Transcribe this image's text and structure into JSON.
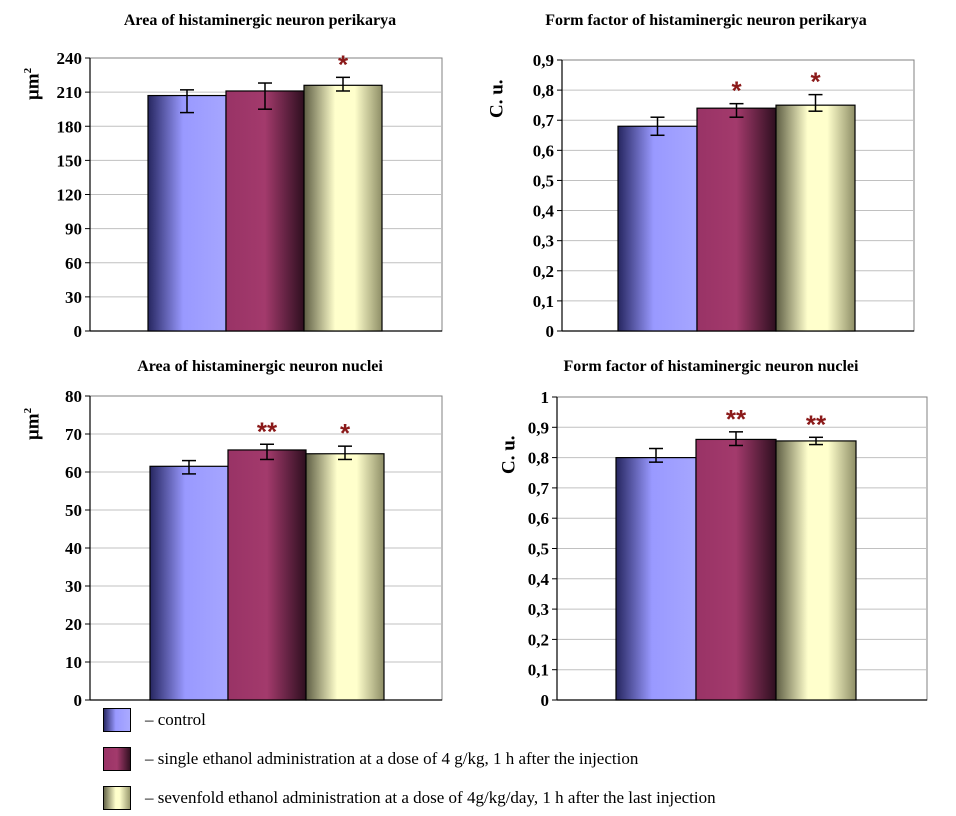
{
  "colors": {
    "control": "#9999ff",
    "single": "#993366",
    "sevenfold": "#ffffcc",
    "star": "#8b1a1a"
  },
  "chart_data": [
    {
      "id": "area-perikarya",
      "type": "bar",
      "title": "Area of histaminergic neuron perikarya",
      "ylabel": "μm",
      "ylabel_sup": "2",
      "ylim": [
        0,
        240
      ],
      "yticks": [
        0,
        30,
        60,
        90,
        120,
        150,
        180,
        210,
        240
      ],
      "ytick_labels": [
        "0",
        "30",
        "60",
        "90",
        "120",
        "150",
        "180",
        "210",
        "240"
      ],
      "grid": true,
      "series": [
        {
          "name": "control",
          "value": 207,
          "err_low": 15,
          "err_high": 5,
          "mark": ""
        },
        {
          "name": "single",
          "value": 211,
          "err_low": 16,
          "err_high": 7,
          "mark": ""
        },
        {
          "name": "sevenfold",
          "value": 216,
          "err_low": 5,
          "err_high": 7,
          "mark": "*"
        }
      ]
    },
    {
      "id": "ff-perikarya",
      "type": "bar",
      "title": "Form factor of histaminergic neuron perikarya",
      "ylabel": "C. u.",
      "ylabel_sup": "",
      "ylim": [
        0,
        0.9
      ],
      "yticks": [
        0,
        0.1,
        0.2,
        0.3,
        0.4,
        0.5,
        0.6,
        0.7,
        0.8,
        0.9
      ],
      "ytick_labels": [
        "0",
        "0,1",
        "0,2",
        "0,3",
        "0,4",
        "0,5",
        "0,6",
        "0,7",
        "0,8",
        "0,9"
      ],
      "grid": true,
      "series": [
        {
          "name": "control",
          "value": 0.68,
          "err_low": 0.03,
          "err_high": 0.03,
          "mark": ""
        },
        {
          "name": "single",
          "value": 0.74,
          "err_low": 0.03,
          "err_high": 0.015,
          "mark": "*"
        },
        {
          "name": "sevenfold",
          "value": 0.75,
          "err_low": 0.02,
          "err_high": 0.035,
          "mark": "*"
        }
      ]
    },
    {
      "id": "area-nuclei",
      "type": "bar",
      "title": "Area of histaminergic neuron nuclei",
      "ylabel": "μm",
      "ylabel_sup": "2",
      "ylim": [
        0,
        80
      ],
      "yticks": [
        0,
        10,
        20,
        30,
        40,
        50,
        60,
        70,
        80
      ],
      "ytick_labels": [
        "0",
        "10",
        "20",
        "30",
        "40",
        "50",
        "60",
        "70",
        "80"
      ],
      "grid": true,
      "series": [
        {
          "name": "control",
          "value": 61.5,
          "err_low": 2,
          "err_high": 1.5,
          "mark": ""
        },
        {
          "name": "single",
          "value": 65.8,
          "err_low": 2.5,
          "err_high": 1.5,
          "mark": "**"
        },
        {
          "name": "sevenfold",
          "value": 64.8,
          "err_low": 1.5,
          "err_high": 2,
          "mark": "*"
        }
      ]
    },
    {
      "id": "ff-nuclei",
      "type": "bar",
      "title": "Form factor of histaminergic neuron nuclei",
      "ylabel": "C. u.",
      "ylabel_sup": "",
      "ylim": [
        0,
        1
      ],
      "yticks": [
        0,
        0.1,
        0.2,
        0.3,
        0.4,
        0.5,
        0.6,
        0.7,
        0.8,
        0.9,
        1
      ],
      "ytick_labels": [
        "0",
        "0,1",
        "0,2",
        "0,3",
        "0,4",
        "0,5",
        "0,6",
        "0,7",
        "0,8",
        "0,9",
        "1"
      ],
      "grid": true,
      "series": [
        {
          "name": "control",
          "value": 0.8,
          "err_low": 0.015,
          "err_high": 0.03,
          "mark": ""
        },
        {
          "name": "single",
          "value": 0.86,
          "err_low": 0.02,
          "err_high": 0.025,
          "mark": "**"
        },
        {
          "name": "sevenfold",
          "value": 0.855,
          "err_low": 0.012,
          "err_high": 0.012,
          "mark": "**"
        }
      ]
    }
  ],
  "legend": {
    "items": [
      {
        "key": "control",
        "label": "– control"
      },
      {
        "key": "single",
        "label": "– single ethanol administration at a dose of 4 g/kg, 1 h after the injection"
      },
      {
        "key": "sevenfold",
        "label": "– sevenfold ethanol administration at a dose of 4g/kg/day, 1 h after the last injection"
      }
    ]
  }
}
